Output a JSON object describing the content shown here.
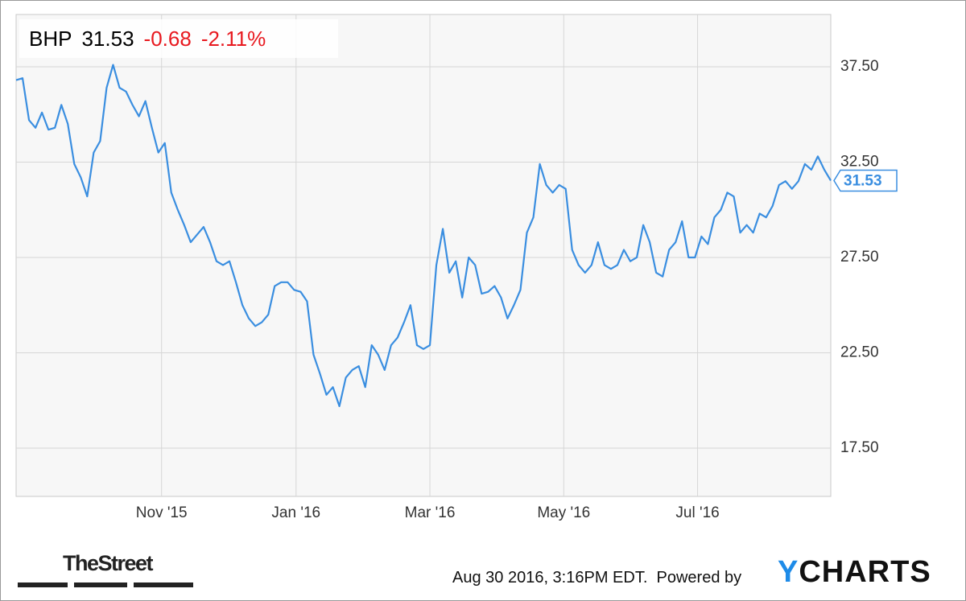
{
  "header": {
    "ticker": "BHP",
    "price": "31.53",
    "change": "-0.68",
    "change_percent": "-2.11%"
  },
  "chart_data": {
    "type": "line",
    "series": [
      {
        "name": "BHP",
        "color": "#3a8ee0",
        "values": [
          36.8,
          36.9,
          34.7,
          34.3,
          35.1,
          34.2,
          34.3,
          35.5,
          34.5,
          32.4,
          31.7,
          30.7,
          33.0,
          33.6,
          36.4,
          37.6,
          36.4,
          36.2,
          35.5,
          34.9,
          35.7,
          34.3,
          33.0,
          33.5,
          30.9,
          30.0,
          29.2,
          28.3,
          28.7,
          29.1,
          28.3,
          27.3,
          27.1,
          27.3,
          26.2,
          25.0,
          24.3,
          23.9,
          24.1,
          24.5,
          26.0,
          26.2,
          26.2,
          25.8,
          25.7,
          25.2,
          22.4,
          21.4,
          20.3,
          20.7,
          19.7,
          21.2,
          21.6,
          21.8,
          20.7,
          22.9,
          22.4,
          21.6,
          22.9,
          23.3,
          24.1,
          25.0,
          22.9,
          22.7,
          22.9,
          27.1,
          29.0,
          26.7,
          27.3,
          25.4,
          27.5,
          27.1,
          25.6,
          25.7,
          26.0,
          25.4,
          24.3,
          25.0,
          25.8,
          28.8,
          29.6,
          32.4,
          31.3,
          30.9,
          31.3,
          31.1,
          27.9,
          27.1,
          26.7,
          27.1,
          28.3,
          27.1,
          26.9,
          27.1,
          27.9,
          27.3,
          27.5,
          29.2,
          28.3,
          26.7,
          26.5,
          27.9,
          28.3,
          29.4,
          27.5,
          27.5,
          28.6,
          28.2,
          29.6,
          30.0,
          30.9,
          30.7,
          28.8,
          29.2,
          28.8,
          29.8,
          29.6,
          30.2,
          31.3,
          31.5,
          31.1,
          31.5,
          32.4,
          32.1,
          32.8,
          32.1,
          31.53
        ]
      }
    ],
    "xlim": [
      0,
      126
    ],
    "xticks": [
      {
        "value": 22.5,
        "label": "Nov '15"
      },
      {
        "value": 43.3,
        "label": "Jan '16"
      },
      {
        "value": 64,
        "label": "Mar '16"
      },
      {
        "value": 84.7,
        "label": "May '16"
      },
      {
        "value": 105.4,
        "label": "Jul '16"
      }
    ],
    "ylim": [
      14.97,
      40.24
    ],
    "yticks": [
      {
        "value": 17.5,
        "label": "17.50"
      },
      {
        "value": 22.5,
        "label": "22.50"
      },
      {
        "value": 27.5,
        "label": "27.50"
      },
      {
        "value": 32.5,
        "label": "32.50"
      },
      {
        "value": 37.5,
        "label": "37.50"
      }
    ],
    "grid": true
  },
  "footer": {
    "source": "TheStreet",
    "timestamp": "Aug 30 2016, 3:16PM EDT.",
    "powered": "Powered by",
    "brand": "YCHARTS"
  }
}
